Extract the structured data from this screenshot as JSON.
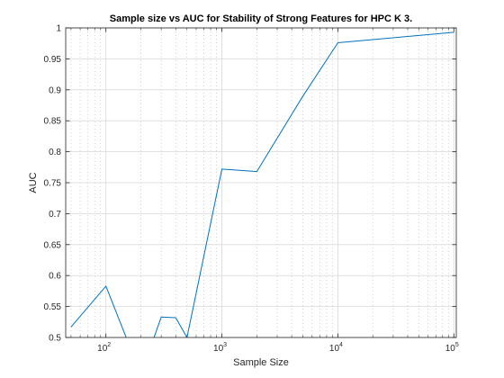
{
  "chart_data": {
    "type": "line",
    "title": "Sample size vs AUC for Stability of Strong Features for HPC K 3.",
    "xlabel": "Sample Size",
    "ylabel": "AUC",
    "xscale": "log",
    "xlim": [
      45,
      105000
    ],
    "ylim": [
      0.5,
      1.0
    ],
    "grid": "major-and-minor",
    "x_ticks": [
      {
        "value": 100,
        "base": "10",
        "exp": "2"
      },
      {
        "value": 1000,
        "base": "10",
        "exp": "3"
      },
      {
        "value": 10000,
        "base": "10",
        "exp": "4"
      },
      {
        "value": 100000,
        "base": "10",
        "exp": "5"
      }
    ],
    "y_ticks": [
      {
        "value": 0.5,
        "label": "0.5"
      },
      {
        "value": 0.55,
        "label": "0.55"
      },
      {
        "value": 0.6,
        "label": "0.6"
      },
      {
        "value": 0.65,
        "label": "0.65"
      },
      {
        "value": 0.7,
        "label": "0.7"
      },
      {
        "value": 0.75,
        "label": "0.75"
      },
      {
        "value": 0.8,
        "label": "0.8"
      },
      {
        "value": 0.85,
        "label": "0.85"
      },
      {
        "value": 0.9,
        "label": "0.9"
      },
      {
        "value": 0.95,
        "label": "0.95"
      },
      {
        "value": 1.0,
        "label": "1"
      }
    ],
    "series": [
      {
        "color": "#0072bd",
        "x": [
          50,
          100,
          200,
          300,
          400,
          500,
          1000,
          2000,
          5000,
          10000,
          100000
        ],
        "y": [
          0.517,
          0.583,
          0.44,
          0.533,
          0.532,
          0.5,
          0.772,
          0.768,
          0.89,
          0.976,
          0.993
        ]
      }
    ]
  }
}
